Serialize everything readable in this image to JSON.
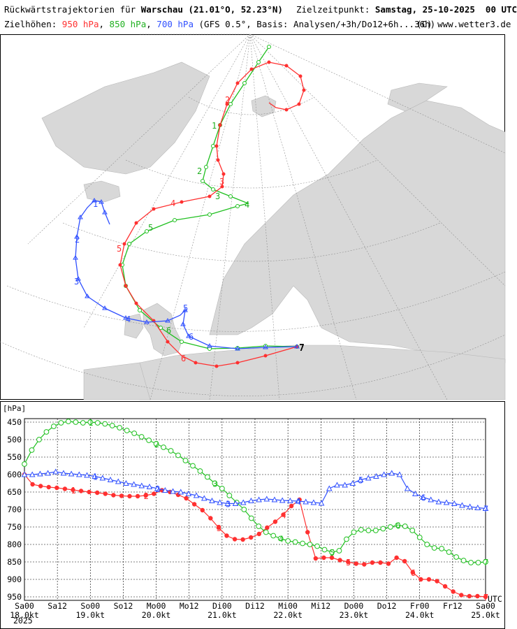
{
  "header": {
    "title_prefix": "Rückwärtstrajektorien für",
    "city": "Warschau",
    "coords": "(21.01°O, 52.23°N)",
    "target_label": "Zielzeitpunkt:",
    "target_value": "Samstag, 25-10-2025  00 UTC",
    "heights_label": "Zielhöhen:",
    "level_950": "950 hPa",
    "level_850": "850 hPa",
    "level_700": "700 hPa",
    "basis": "(GFS 0.5°, Basis: Analysen/+3h/Do12+6h...36h)",
    "copyright": "(C) www.wetter3.de",
    "sep1": ",",
    "sep2": ","
  },
  "colors": {
    "level_950": "#ff3030",
    "level_850": "#20c020",
    "level_700": "#3050ff",
    "land": "#d8d8d8",
    "sea": "#ffffff"
  },
  "map": {
    "end_marker": "7",
    "track_labels": {
      "950": [
        "2",
        "3",
        "4",
        "5",
        "6"
      ],
      "850": [
        "1",
        "2",
        "3",
        "4",
        "5",
        "6"
      ],
      "700": [
        "1",
        "2",
        "3",
        "4",
        "5",
        "6"
      ]
    }
  },
  "chart_data": {
    "type": "line",
    "y_unit": "[hPa]",
    "ylim": [
      955,
      440
    ],
    "y_ticks": [
      450,
      500,
      550,
      600,
      650,
      700,
      750,
      800,
      850,
      900,
      950
    ],
    "x_labels": [
      {
        "top": "Sa00",
        "bottom": "18.0kt"
      },
      {
        "top": "Sa12",
        "bottom": ""
      },
      {
        "top": "So00",
        "bottom": "19.0kt"
      },
      {
        "top": "So12",
        "bottom": ""
      },
      {
        "top": "Mo00",
        "bottom": "20.0kt"
      },
      {
        "top": "Mo12",
        "bottom": ""
      },
      {
        "top": "Di00",
        "bottom": "21.0kt"
      },
      {
        "top": "Di12",
        "bottom": ""
      },
      {
        "top": "Mi00",
        "bottom": "22.0kt"
      },
      {
        "top": "Mi12",
        "bottom": ""
      },
      {
        "top": "Do00",
        "bottom": "23.0kt"
      },
      {
        "top": "Do12",
        "bottom": ""
      },
      {
        "top": "Fr00",
        "bottom": "24.0kt"
      },
      {
        "top": "Fr12",
        "bottom": ""
      },
      {
        "top": "Sa00",
        "bottom": "25.0kt"
      }
    ],
    "year": "2025",
    "utc_label": "UTC",
    "series": [
      {
        "name": "950 hPa",
        "color": "#ff3030",
        "marker": "dot",
        "values": [
          600,
          628,
          633,
          636,
          638,
          641,
          644,
          647,
          650,
          652,
          655,
          659,
          661,
          662,
          662,
          660,
          655,
          645,
          650,
          658,
          668,
          685,
          702,
          725,
          752,
          775,
          785,
          786,
          780,
          770,
          752,
          735,
          715,
          690,
          672,
          765,
          840,
          838,
          838,
          845,
          850,
          855,
          857,
          852,
          852,
          855,
          838,
          848,
          880,
          900,
          900,
          905,
          920,
          935,
          945,
          948,
          948,
          950
        ],
        "labels": {
          "6": "1",
          "15": "2",
          "24": "3",
          "32": "4",
          "40": "5",
          "48": "6",
          "57": "7"
        }
      },
      {
        "name": "850 hPa",
        "color": "#20c020",
        "marker": "circle",
        "values": [
          570,
          530,
          500,
          478,
          462,
          452,
          448,
          450,
          452,
          450,
          452,
          455,
          460,
          466,
          474,
          482,
          492,
          502,
          512,
          522,
          532,
          545,
          560,
          575,
          590,
          607,
          625,
          640,
          660,
          680,
          700,
          725,
          748,
          765,
          775,
          783,
          790,
          793,
          797,
          800,
          805,
          815,
          822,
          818,
          785,
          765,
          758,
          760,
          760,
          755,
          750,
          745,
          748,
          760,
          780,
          800,
          810,
          812,
          822,
          836,
          846,
          852,
          852,
          850
        ],
        "labels": {
          "9": "1",
          "18": "2",
          "26": "3",
          "35": "4",
          "42": "5",
          "51": "6",
          "63": "7"
        }
      },
      {
        "name": "700 hPa",
        "color": "#3050ff",
        "marker": "triangle",
        "values": [
          600,
          600,
          598,
          596,
          592,
          596,
          598,
          600,
          602,
          605,
          610,
          615,
          620,
          625,
          628,
          632,
          635,
          640,
          645,
          648,
          650,
          655,
          660,
          668,
          675,
          680,
          683,
          683,
          680,
          675,
          672,
          670,
          672,
          674,
          675,
          676,
          678,
          680,
          682,
          640,
          630,
          630,
          625,
          615,
          610,
          605,
          600,
          596,
          600,
          640,
          655,
          665,
          672,
          678,
          680,
          683,
          688,
          692,
          695,
          697
        ],
        "labels": {
          "9": "1",
          "17": "2",
          "26": "3",
          "35": "4",
          "43": "5",
          "51": "6",
          "59": "7"
        }
      }
    ]
  }
}
